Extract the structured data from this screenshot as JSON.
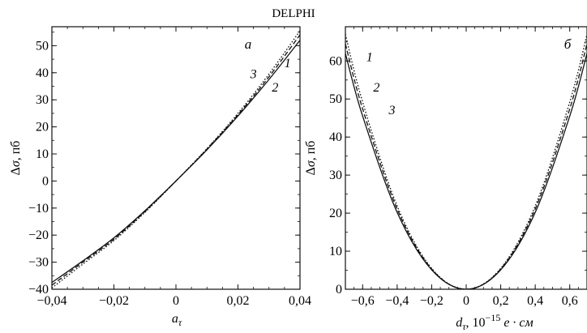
{
  "title": "DELPHI",
  "chart_data": [
    {
      "type": "line",
      "panel_label": "а",
      "xlabel": "a",
      "xlabel_sub": "τ",
      "ylabel": "Δσ, пб",
      "xlim": [
        -0.04,
        0.04
      ],
      "ylim": [
        -40,
        57
      ],
      "xticks": [
        -0.04,
        -0.02,
        0,
        0.02,
        0.04
      ],
      "xtick_labels": [
        "−0,04",
        "−0,02",
        "0",
        "0,02",
        "0,04"
      ],
      "yticks": [
        -40,
        -30,
        -20,
        -10,
        0,
        10,
        20,
        30,
        40,
        50
      ],
      "ytick_labels": [
        "−40",
        "−30",
        "−20",
        "−10",
        "0",
        "10",
        "20",
        "30",
        "40",
        "50"
      ],
      "series": [
        {
          "name": "1",
          "style": "solid",
          "x": [
            -0.04,
            -0.03,
            -0.02,
            -0.01,
            0,
            0.01,
            0.02,
            0.03,
            0.04
          ],
          "y": [
            -37.5,
            -29.5,
            -21,
            -11,
            0,
            11.5,
            24,
            37.5,
            52
          ]
        },
        {
          "name": "2",
          "style": "dashed",
          "x": [
            -0.04,
            -0.03,
            -0.02,
            -0.01,
            0,
            0.01,
            0.02,
            0.03,
            0.04
          ],
          "y": [
            -38.5,
            -30,
            -21.5,
            -11.3,
            0,
            11.8,
            24.5,
            38.5,
            54
          ]
        },
        {
          "name": "3",
          "style": "dotted",
          "x": [
            -0.04,
            -0.03,
            -0.02,
            -0.01,
            0,
            0.01,
            0.02,
            0.03,
            0.04
          ],
          "y": [
            -39.5,
            -30.7,
            -22,
            -11.6,
            0,
            12,
            25,
            39.5,
            55.5
          ]
        }
      ],
      "annotations": [
        {
          "text": "1",
          "x": 0.036,
          "y": 42
        },
        {
          "text": "2",
          "x": 0.032,
          "y": 33
        },
        {
          "text": "3",
          "x": 0.025,
          "y": 38
        }
      ]
    },
    {
      "type": "line",
      "panel_label": "б",
      "xlabel": "d",
      "xlabel_sub": "τ",
      "xlabel_rest": ", 10",
      "xlabel_exp": "−15",
      "xlabel_unit": "e · см",
      "ylabel": "Δσ, пб",
      "xlim": [
        -0.7,
        0.7
      ],
      "ylim": [
        0,
        69
      ],
      "xticks": [
        -0.6,
        -0.4,
        -0.2,
        0,
        0.2,
        0.4,
        0.6
      ],
      "xtick_labels": [
        "−0,6",
        "−0,4",
        "−0,2",
        "0",
        "0,2",
        "0,4",
        "0,6"
      ],
      "yticks": [
        0,
        10,
        20,
        30,
        40,
        50,
        60
      ],
      "ytick_labels": [
        "0",
        "10",
        "20",
        "30",
        "40",
        "50",
        "60"
      ],
      "series": [
        {
          "name": "1",
          "style": "solid",
          "x": [
            -0.7,
            -0.6,
            -0.4,
            -0.2,
            0,
            0.2,
            0.4,
            0.6,
            0.7
          ],
          "y": [
            62,
            45.5,
            20.2,
            5.1,
            0,
            5.1,
            20.2,
            45.5,
            62
          ]
        },
        {
          "name": "2",
          "style": "dashed",
          "x": [
            -0.7,
            -0.6,
            -0.4,
            -0.2,
            0,
            0.2,
            0.4,
            0.6,
            0.7
          ],
          "y": [
            64.5,
            47.4,
            21.1,
            5.3,
            0,
            5.3,
            21.1,
            47.4,
            64.5
          ]
        },
        {
          "name": "3",
          "style": "dotted",
          "x": [
            -0.7,
            -0.6,
            -0.4,
            -0.2,
            0,
            0.2,
            0.4,
            0.6,
            0.7
          ],
          "y": [
            67,
            49.2,
            21.9,
            5.5,
            0,
            5.5,
            21.9,
            49.2,
            67
          ]
        }
      ],
      "annotations": [
        {
          "text": "1",
          "x": -0.56,
          "y": 60
        },
        {
          "text": "2",
          "x": -0.52,
          "y": 52
        },
        {
          "text": "3",
          "x": -0.43,
          "y": 46
        }
      ]
    }
  ]
}
